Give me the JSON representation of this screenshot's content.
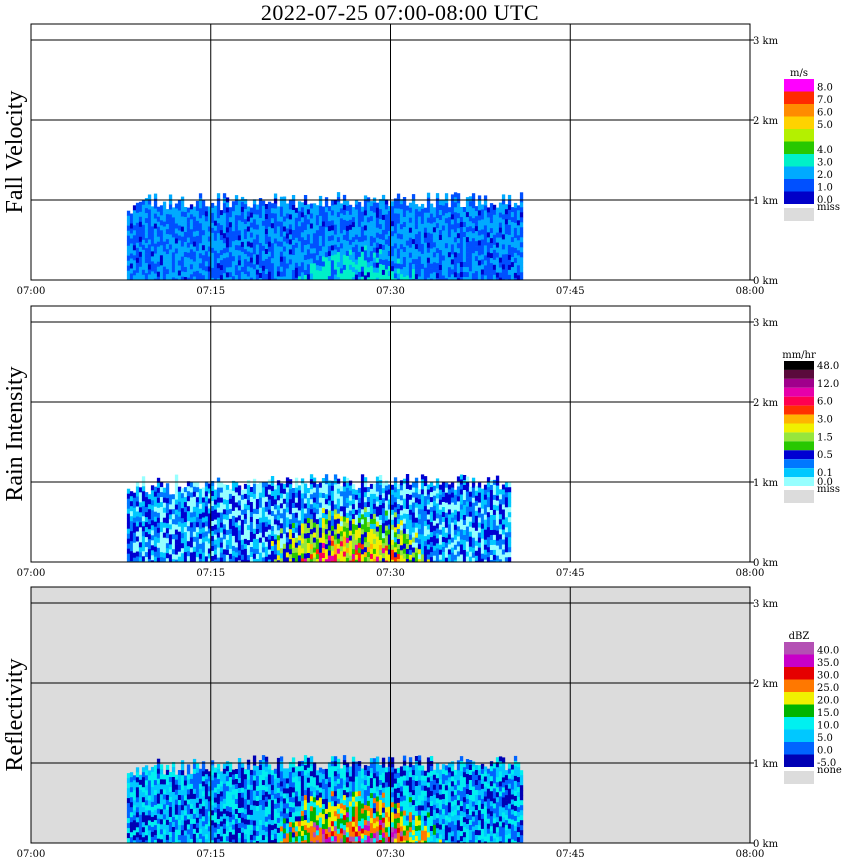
{
  "chart_data": {
    "type": "heatmap",
    "title": "2022-07-25  07:00-08:00 UTC",
    "x_ticks": [
      "07:00",
      "07:15",
      "07:30",
      "07:45",
      "08:00"
    ],
    "x_range": [
      "07:00",
      "08:00"
    ],
    "y_ticks": [
      "0 km",
      "1 km",
      "2 km",
      "3 km"
    ],
    "y_range_km": [
      0,
      3.2
    ],
    "grid": true,
    "panels": [
      {
        "ylabel": "Fall Velocity",
        "unit": "m/s",
        "background": "#ffffff",
        "legend": [
          {
            "label": "8.0",
            "color": "#ff00ff"
          },
          {
            "label": "7.0",
            "color": "#ff2a00"
          },
          {
            "label": "6.0",
            "color": "#ff8c00"
          },
          {
            "label": "5.0",
            "color": "#ffd200"
          },
          {
            "label": "",
            "color": "#b4f000"
          },
          {
            "label": "4.0",
            "color": "#28c800"
          },
          {
            "label": "3.0",
            "color": "#00f0c8"
          },
          {
            "label": "2.0",
            "color": "#00aaff"
          },
          {
            "label": "1.0",
            "color": "#0050ff"
          },
          {
            "label": "0.0",
            "color": "#0000c8"
          }
        ],
        "miss_label": "miss",
        "echo": {
          "start": "07:08",
          "end": "07:41",
          "top_km": 1.1
        }
      },
      {
        "ylabel": "Rain Intensity",
        "unit": "mm/hr",
        "background": "#ffffff",
        "legend": [
          {
            "label": "48.0",
            "color": "#000000"
          },
          {
            "label": "",
            "color": "#5a0a3c"
          },
          {
            "label": "12.0",
            "color": "#a0008c"
          },
          {
            "label": "",
            "color": "#e600aa"
          },
          {
            "label": "6.0",
            "color": "#ff0050"
          },
          {
            "label": "",
            "color": "#ff3000"
          },
          {
            "label": "3.0",
            "color": "#ffb400"
          },
          {
            "label": "",
            "color": "#f0f000"
          },
          {
            "label": "1.5",
            "color": "#96e63c"
          },
          {
            "label": "",
            "color": "#28c800"
          },
          {
            "label": "0.5",
            "color": "#0000d2"
          },
          {
            "label": "",
            "color": "#0078ff"
          },
          {
            "label": "0.1",
            "color": "#00c8ff"
          },
          {
            "label": "0.0",
            "color": "#96ffff"
          }
        ],
        "miss_label": "miss",
        "echo": {
          "start": "07:08",
          "end": "07:40",
          "top_km": 1.1
        }
      },
      {
        "ylabel": "Reflectivity",
        "unit": "dBZ",
        "background": "#dcdcdc",
        "legend": [
          {
            "label": "40.0",
            "color": "#b450b4"
          },
          {
            "label": "35.0",
            "color": "#c800c8"
          },
          {
            "label": "30.0",
            "color": "#e60000"
          },
          {
            "label": "25.0",
            "color": "#ff7800"
          },
          {
            "label": "20.0",
            "color": "#f0f000"
          },
          {
            "label": "15.0",
            "color": "#00b400"
          },
          {
            "label": "10.0",
            "color": "#00f0f0"
          },
          {
            "label": "5.0",
            "color": "#00c8ff"
          },
          {
            "label": "0.0",
            "color": "#0064ff"
          },
          {
            "label": "-5.0",
            "color": "#0000b4"
          }
        ],
        "miss_label": "none",
        "echo": {
          "start": "07:08",
          "end": "07:41",
          "top_km": 1.1
        }
      }
    ]
  }
}
